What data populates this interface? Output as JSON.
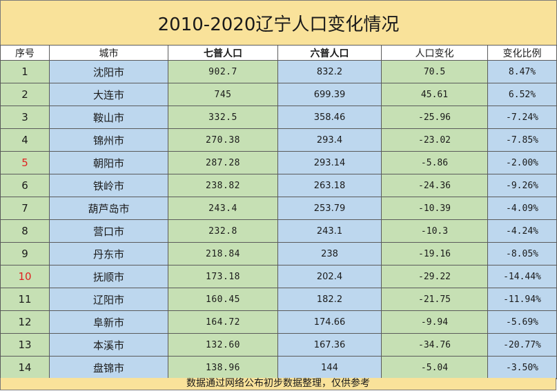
{
  "title": "2010-2020辽宁人口变化情况",
  "headers": [
    "序号",
    "城市",
    "七普人口",
    "六普人口",
    "人口变化",
    "变化比例"
  ],
  "rows": [
    {
      "idx": "1",
      "city": "沈阳市",
      "census7": "902.7",
      "census6": "832.2",
      "change": "70.5",
      "ratio": "8.47%",
      "idx_red": false
    },
    {
      "idx": "2",
      "city": "大连市",
      "census7": "745",
      "census6": "699.39",
      "change": "45.61",
      "ratio": "6.52%",
      "idx_red": false
    },
    {
      "idx": "3",
      "city": "鞍山市",
      "census7": "332.5",
      "census6": "358.46",
      "change": "-25.96",
      "ratio": "-7.24%",
      "idx_red": false
    },
    {
      "idx": "4",
      "city": "锦州市",
      "census7": "270.38",
      "census6": "293.4",
      "change": "-23.02",
      "ratio": "-7.85%",
      "idx_red": false
    },
    {
      "idx": "5",
      "city": "朝阳市",
      "census7": "287.28",
      "census6": "293.14",
      "change": "-5.86",
      "ratio": "-2.00%",
      "idx_red": true
    },
    {
      "idx": "6",
      "city": "铁岭市",
      "census7": "238.82",
      "census6": "263.18",
      "change": "-24.36",
      "ratio": "-9.26%",
      "idx_red": false
    },
    {
      "idx": "7",
      "city": "葫芦岛市",
      "census7": "243.4",
      "census6": "253.79",
      "change": "-10.39",
      "ratio": "-4.09%",
      "idx_red": false
    },
    {
      "idx": "8",
      "city": "营口市",
      "census7": "232.8",
      "census6": "243.1",
      "change": "-10.3",
      "ratio": "-4.24%",
      "idx_red": false
    },
    {
      "idx": "9",
      "city": "丹东市",
      "census7": "218.84",
      "census6": "238",
      "change": "-19.16",
      "ratio": "-8.05%",
      "idx_red": false
    },
    {
      "idx": "10",
      "city": "抚顺市",
      "census7": "173.18",
      "census6": "202.4",
      "change": "-29.22",
      "ratio": "-14.44%",
      "idx_red": true
    },
    {
      "idx": "11",
      "city": "辽阳市",
      "census7": "160.45",
      "census6": "182.2",
      "change": "-21.75",
      "ratio": "-11.94%",
      "idx_red": false
    },
    {
      "idx": "12",
      "city": "阜新市",
      "census7": "164.72",
      "census6": "174.66",
      "change": "-9.94",
      "ratio": "-5.69%",
      "idx_red": false
    },
    {
      "idx": "13",
      "city": "本溪市",
      "census7": "132.60",
      "census6": "167.36",
      "change": "-34.76",
      "ratio": "-20.77%",
      "idx_red": false
    },
    {
      "idx": "14",
      "city": "盘锦市",
      "census7": "138.96",
      "census6": "144",
      "change": "-5.04",
      "ratio": "-3.50%",
      "idx_red": false
    }
  ],
  "footer": "数据通过网络公布初步数据整理，仅供参考",
  "colors": {
    "title_bg": "#f9e29a",
    "green": "#c6e0b4",
    "blue": "#bdd7ee",
    "red": "#e02020"
  }
}
